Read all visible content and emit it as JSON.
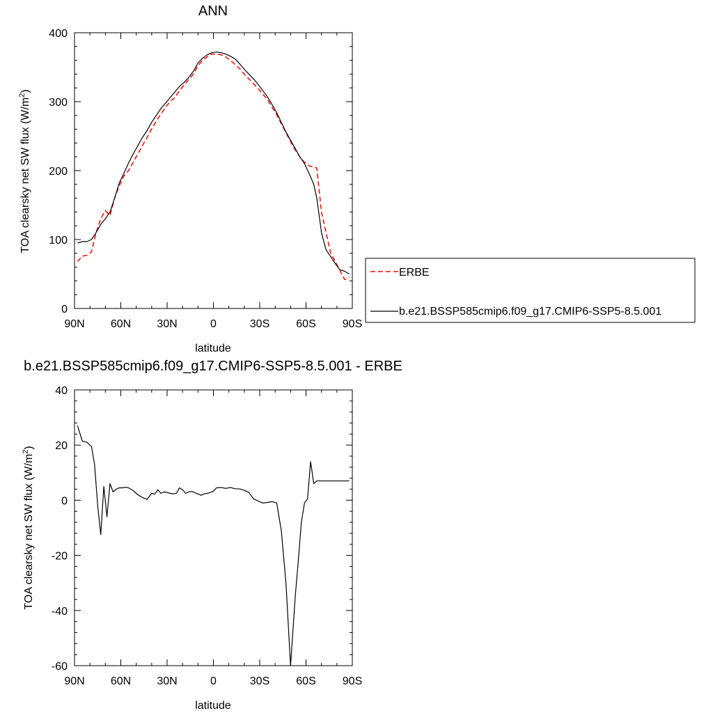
{
  "chart_data": [
    {
      "type": "line",
      "title": "ANN",
      "xlabel": "latitude",
      "ylabel_main": "TOA clearsky net SW flux (W/m",
      "ylabel_sup": "2",
      "ylabel_close": ")",
      "xlim": [
        90,
        -90
      ],
      "ylim": [
        0,
        400
      ],
      "xticks": [
        90,
        60,
        30,
        0,
        -30,
        -60,
        -90
      ],
      "xtick_labels": [
        "90N",
        "60N",
        "30N",
        "0",
        "30S",
        "60S",
        "90S"
      ],
      "yticks": [
        0,
        100,
        200,
        300,
        400
      ],
      "ytick_labels": [
        "0",
        "100",
        "200",
        "300",
        "400"
      ],
      "legend": "right",
      "series": [
        {
          "name": "ERBE",
          "color": "#ff0000",
          "dash": "dashed",
          "x": [
            88,
            85,
            82,
            79,
            76,
            73,
            70,
            67,
            64,
            61,
            58,
            55,
            52,
            49,
            46,
            43,
            40,
            37,
            34,
            31,
            28,
            25,
            22,
            19,
            16,
            13,
            10,
            7,
            4,
            1,
            -2,
            -5,
            -8,
            -11,
            -14,
            -17,
            -20,
            -23,
            -26,
            -29,
            -32,
            -35,
            -38,
            -41,
            -44,
            -47,
            -50,
            -53,
            -56,
            -59,
            -62,
            -65,
            -67,
            -70,
            -73,
            -76,
            -79,
            -82,
            -85,
            -88
          ],
          "y": [
            68,
            76,
            77,
            82,
            110,
            130,
            142,
            135,
            160,
            178,
            192,
            200,
            212,
            224,
            236,
            248,
            260,
            272,
            282,
            292,
            300,
            306,
            316,
            324,
            332,
            340,
            352,
            360,
            365,
            369,
            369,
            368,
            365,
            360,
            354,
            348,
            340,
            333,
            326,
            319,
            311,
            303,
            292,
            281,
            268,
            255,
            242,
            230,
            220,
            212,
            207,
            205,
            204,
            140,
            110,
            80,
            68,
            55,
            42,
            45
          ]
        },
        {
          "name": "b.e21.BSSP585cmip6.f09_g17.CMIP6-SSP5-8.5.001",
          "color": "#000000",
          "dash": "solid",
          "x": [
            88,
            85,
            82,
            79,
            76,
            73,
            70,
            67,
            64,
            61,
            58,
            55,
            52,
            49,
            46,
            43,
            40,
            37,
            34,
            31,
            28,
            25,
            22,
            19,
            16,
            13,
            10,
            7,
            4,
            1,
            -2,
            -5,
            -8,
            -11,
            -14,
            -17,
            -20,
            -23,
            -26,
            -29,
            -32,
            -35,
            -38,
            -41,
            -44,
            -47,
            -50,
            -53,
            -56,
            -59,
            -62,
            -65,
            -67,
            -70,
            -73,
            -76,
            -79,
            -82,
            -85,
            -88
          ],
          "y": [
            95,
            97,
            97,
            100,
            110,
            122,
            130,
            140,
            160,
            182,
            196,
            211,
            224,
            236,
            248,
            258,
            270,
            280,
            290,
            298,
            306,
            314,
            322,
            328,
            335,
            344,
            356,
            363,
            368,
            371,
            372,
            371,
            369,
            366,
            362,
            355,
            347,
            340,
            333,
            325,
            316,
            307,
            296,
            284,
            270,
            256,
            244,
            232,
            220,
            210,
            196,
            180,
            160,
            110,
            85,
            75,
            65,
            56,
            54,
            50
          ]
        }
      ]
    },
    {
      "type": "line",
      "title": "b.e21.BSSP585cmip6.f09_g17.CMIP6-SSP5-8.5.001 - ERBE",
      "xlabel": "latitude",
      "ylabel_main": "TOA clearsky net SW flux (W/m",
      "ylabel_sup": "2",
      "ylabel_close": ")",
      "xlim": [
        90,
        -90
      ],
      "ylim": [
        -60,
        40
      ],
      "xticks": [
        90,
        60,
        30,
        0,
        -30,
        -60,
        -90
      ],
      "xtick_labels": [
        "90N",
        "60N",
        "30N",
        "0",
        "30S",
        "60S",
        "90S"
      ],
      "yticks": [
        -60,
        -40,
        -20,
        0,
        20,
        40
      ],
      "ytick_labels": [
        "-60",
        "-40",
        "-20",
        "0",
        "20",
        "40"
      ],
      "series": [
        {
          "color": "#000000",
          "dash": "solid",
          "x": [
            88,
            85,
            82,
            79,
            77,
            75,
            73,
            71,
            69,
            67,
            65,
            63,
            61,
            59,
            57,
            55,
            52,
            49,
            46,
            43,
            40,
            38,
            36,
            34,
            32,
            30,
            28,
            26,
            24,
            22,
            20,
            18,
            16,
            14,
            12,
            10,
            8,
            6,
            4,
            2,
            0,
            -2,
            -5,
            -8,
            -11,
            -14,
            -17,
            -20,
            -23,
            -26,
            -29,
            -32,
            -35,
            -38,
            -41,
            -44,
            -47,
            -50,
            -53,
            -55,
            -57,
            -59,
            -61,
            -63,
            -65,
            -67,
            -69,
            -72,
            -75,
            -78,
            -81,
            -84,
            -86,
            -88
          ],
          "y": [
            27,
            21.5,
            21,
            19.5,
            13,
            -2,
            -12.5,
            5,
            -6,
            6,
            3,
            4,
            4.5,
            4.5,
            4.7,
            4.5,
            3.5,
            2,
            1,
            0.3,
            2.5,
            2.2,
            3.8,
            2.5,
            3,
            2.8,
            2.5,
            2.3,
            2.5,
            4.5,
            3.8,
            2.5,
            3,
            3.2,
            2.7,
            2.3,
            1.8,
            2.3,
            2.5,
            2.8,
            3.3,
            4.5,
            4.6,
            4.3,
            4.6,
            4.2,
            4.1,
            3.6,
            2.8,
            0.5,
            -0.3,
            -1,
            -0.8,
            -0.5,
            -1,
            -11,
            -30,
            -60,
            -35,
            -22,
            -8,
            -1,
            0.5,
            14,
            6,
            7,
            7,
            7,
            7,
            7,
            7,
            7,
            7,
            7
          ]
        }
      ]
    }
  ]
}
